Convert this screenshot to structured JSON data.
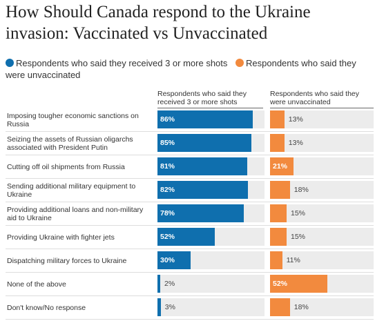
{
  "title": "How Should Canada respond to the Ukraine invasion: Vaccinated vs Unvaccinated",
  "legend": [
    {
      "label": "Respondents who said they received 3 or more shots",
      "color": "#0f6fae"
    },
    {
      "label": "Respondents who said they were unvaccinated",
      "color": "#f28a3e"
    }
  ],
  "columns": [
    "Respondents who said they received 3 or more shots",
    "Respondents who said they were unvaccinated"
  ],
  "chart_data": {
    "type": "bar",
    "orientation": "horizontal",
    "unit": "%",
    "xlim": [
      0,
      100
    ],
    "categories": [
      "Imposing tougher economic sanctions on Russia",
      "Seizing the assets of Russian oligarchs associated with President Putin",
      "Cutting off oil shipments from Russia",
      "Sending additional military equipment to Ukraine",
      "Providing additional loans and non-military aid to Ukraine",
      "Providing Ukraine with fighter jets",
      "Dispatching military forces to Ukraine",
      "None of the above",
      "Don't know/No response"
    ],
    "series": [
      {
        "name": "Respondents who said they received 3 or more shots",
        "color": "#0f6fae",
        "values": [
          86,
          85,
          81,
          82,
          78,
          52,
          30,
          2,
          3
        ]
      },
      {
        "name": "Respondents who said they were unvaccinated",
        "color": "#f28a3e",
        "values": [
          13,
          13,
          21,
          18,
          15,
          15,
          11,
          52,
          18
        ]
      }
    ]
  }
}
